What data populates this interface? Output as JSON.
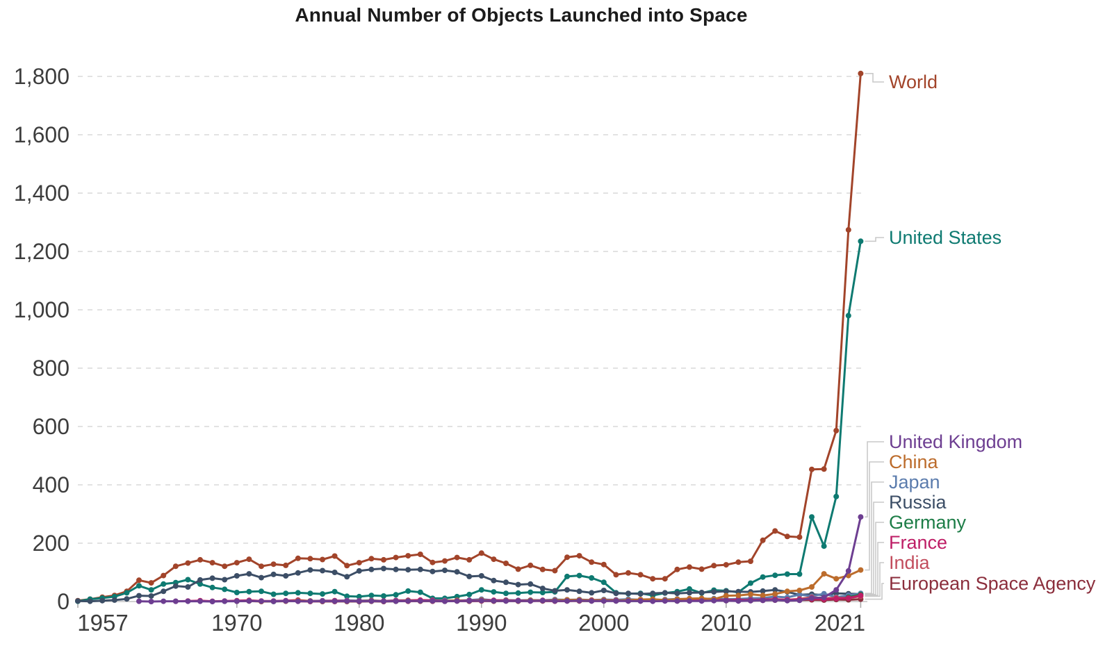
{
  "chart_data": {
    "type": "line",
    "title": "Annual Number of Objects Launched into Space",
    "xlabel": "",
    "ylabel": "",
    "grid": "horizontal-dashed",
    "legend_position": "right-end-labels",
    "x_start": 1957,
    "x_end": 2021,
    "x_tick_years": [
      1957,
      1970,
      1980,
      1990,
      2000,
      2010,
      2021
    ],
    "x_tick_labels": [
      "1957",
      "1970",
      "1980",
      "1990",
      "2000",
      "2010",
      "2021"
    ],
    "y_ticks": [
      0,
      200,
      400,
      600,
      800,
      1000,
      1200,
      1400,
      1600,
      1800
    ],
    "y_tick_labels": [
      "0",
      "200",
      "400",
      "600",
      "800",
      "1,000",
      "1,200",
      "1,400",
      "1,600",
      "1,800"
    ],
    "ylim": [
      0,
      1860
    ],
    "series": [
      {
        "name": "World",
        "color": "#A2442A",
        "values": [
          3,
          8,
          15,
          21,
          35,
          73,
          64,
          89,
          121,
          132,
          143,
          133,
          121,
          133,
          145,
          121,
          128,
          124,
          148,
          147,
          144,
          156,
          123,
          133,
          147,
          143,
          151,
          157,
          162,
          134,
          139,
          151,
          143,
          166,
          145,
          131,
          111,
          124,
          110,
          106,
          152,
          157,
          135,
          127,
          92,
          98,
          92,
          78,
          78,
          110,
          118,
          111,
          123,
          126,
          135,
          138,
          210,
          242,
          223,
          221,
          453,
          454,
          586,
          1274,
          1810
        ]
      },
      {
        "name": "United States",
        "color": "#0E7A71",
        "values": [
          1,
          8,
          12,
          17,
          30,
          54,
          40,
          60,
          65,
          75,
          60,
          48,
          42,
          31,
          34,
          35,
          25,
          28,
          30,
          28,
          26,
          34,
          18,
          17,
          21,
          19,
          23,
          36,
          32,
          11,
          11,
          17,
          24,
          40,
          33,
          28,
          29,
          32,
          31,
          33,
          86,
          89,
          81,
          66,
          30,
          27,
          28,
          21,
          29,
          34,
          43,
          29,
          39,
          37,
          32,
          63,
          84,
          90,
          94,
          94,
          290,
          190,
          360,
          980,
          1235
        ]
      },
      {
        "name": "United Kingdom",
        "color": "#6D3E91",
        "values": [
          null,
          null,
          null,
          null,
          null,
          1,
          0,
          1,
          1,
          1,
          1,
          0,
          1,
          1,
          2,
          1,
          1,
          2,
          1,
          1,
          1,
          1,
          1,
          1,
          2,
          1,
          1,
          2,
          2,
          2,
          1,
          2,
          2,
          3,
          2,
          2,
          2,
          2,
          3,
          2,
          2,
          3,
          2,
          2,
          2,
          2,
          2,
          1,
          2,
          2,
          2,
          2,
          3,
          3,
          2,
          3,
          4,
          5,
          3,
          4,
          12,
          14,
          40,
          105,
          290
        ]
      },
      {
        "name": "China",
        "color": "#BC6C2C",
        "values": [
          null,
          null,
          null,
          null,
          null,
          null,
          null,
          null,
          null,
          null,
          null,
          null,
          null,
          1,
          2,
          0,
          1,
          1,
          3,
          2,
          0,
          1,
          0,
          1,
          3,
          1,
          1,
          3,
          1,
          2,
          2,
          4,
          1,
          5,
          1,
          3,
          1,
          4,
          3,
          4,
          6,
          6,
          4,
          5,
          3,
          5,
          7,
          8,
          5,
          8,
          10,
          11,
          8,
          20,
          21,
          25,
          21,
          26,
          35,
          38,
          50,
          95,
          78,
          89,
          108
        ]
      },
      {
        "name": "Japan",
        "color": "#5B7CAD",
        "values": [
          null,
          null,
          null,
          null,
          null,
          null,
          null,
          null,
          null,
          null,
          null,
          null,
          null,
          2,
          3,
          1,
          0,
          2,
          3,
          2,
          3,
          3,
          4,
          3,
          4,
          2,
          4,
          4,
          3,
          5,
          4,
          3,
          5,
          8,
          4,
          5,
          4,
          5,
          4,
          7,
          6,
          7,
          5,
          7,
          6,
          8,
          6,
          4,
          7,
          9,
          8,
          9,
          10,
          8,
          9,
          11,
          12,
          17,
          14,
          24,
          18,
          27,
          15,
          22,
          28
        ]
      },
      {
        "name": "Russia",
        "color": "#3C4E66",
        "values": [
          2,
          1,
          3,
          5,
          9,
          20,
          19,
          35,
          53,
          50,
          74,
          80,
          75,
          88,
          95,
          82,
          93,
          88,
          98,
          108,
          106,
          100,
          85,
          105,
          110,
          113,
          110,
          109,
          110,
          103,
          107,
          102,
          86,
          88,
          72,
          66,
          58,
          60,
          45,
          37,
          40,
          35,
          30,
          38,
          28,
          28,
          26,
          28,
          30,
          28,
          30,
          31,
          33,
          35,
          34,
          33,
          36,
          40,
          33,
          23,
          25,
          22,
          28,
          27,
          26
        ]
      },
      {
        "name": "Germany",
        "color": "#1D7D47",
        "values": [
          null,
          null,
          null,
          null,
          null,
          null,
          null,
          null,
          null,
          null,
          null,
          null,
          1,
          2,
          2,
          1,
          1,
          2,
          2,
          2,
          1,
          2,
          1,
          1,
          1,
          1,
          1,
          2,
          2,
          2,
          1,
          2,
          2,
          3,
          2,
          2,
          3,
          3,
          2,
          2,
          3,
          2,
          2,
          4,
          3,
          2,
          2,
          2,
          3,
          2,
          3,
          4,
          5,
          4,
          3,
          4,
          6,
          8,
          5,
          6,
          12,
          10,
          8,
          15,
          24
        ]
      },
      {
        "name": "France",
        "color": "#BE1E66",
        "values": [
          null,
          null,
          null,
          null,
          null,
          null,
          null,
          null,
          1,
          2,
          3,
          1,
          2,
          3,
          4,
          2,
          2,
          3,
          5,
          2,
          2,
          3,
          2,
          2,
          3,
          2,
          3,
          4,
          5,
          4,
          2,
          4,
          3,
          5,
          4,
          4,
          3,
          4,
          4,
          4,
          4,
          5,
          5,
          5,
          4,
          3,
          3,
          4,
          4,
          4,
          3,
          5,
          6,
          5,
          6,
          5,
          7,
          8,
          6,
          7,
          9,
          8,
          10,
          12,
          21
        ]
      },
      {
        "name": "India",
        "color": "#C24D5D",
        "values": [
          null,
          null,
          null,
          null,
          null,
          null,
          null,
          null,
          null,
          null,
          null,
          null,
          null,
          null,
          null,
          null,
          null,
          null,
          1,
          0,
          1,
          0,
          2,
          1,
          2,
          1,
          2,
          1,
          2,
          1,
          2,
          2,
          1,
          2,
          2,
          2,
          2,
          2,
          2,
          1,
          2,
          2,
          2,
          2,
          3,
          2,
          3,
          2,
          3,
          3,
          4,
          5,
          4,
          5,
          4,
          5,
          6,
          5,
          6,
          9,
          15,
          11,
          13,
          12,
          18
        ]
      },
      {
        "name": "European Space Agency",
        "color": "#8B2E3C",
        "values": [
          null,
          null,
          null,
          null,
          null,
          null,
          null,
          null,
          null,
          null,
          null,
          null,
          null,
          null,
          null,
          null,
          null,
          null,
          null,
          null,
          null,
          null,
          1,
          0,
          1,
          0,
          2,
          1,
          2,
          1,
          1,
          2,
          2,
          2,
          2,
          3,
          2,
          2,
          3,
          2,
          2,
          3,
          3,
          3,
          2,
          3,
          2,
          3,
          3,
          2,
          3,
          3,
          4,
          3,
          4,
          3,
          4,
          5,
          4,
          5,
          6,
          5,
          7,
          6,
          8
        ]
      }
    ]
  },
  "styles": {
    "grid_color": "#d9d9d9",
    "axis_color": "#c4c4c4",
    "tick_color": "#ababab",
    "tick_label_color": "#3d3d3d",
    "connector_color": "#c9c9c9",
    "background": "#ffffff"
  }
}
